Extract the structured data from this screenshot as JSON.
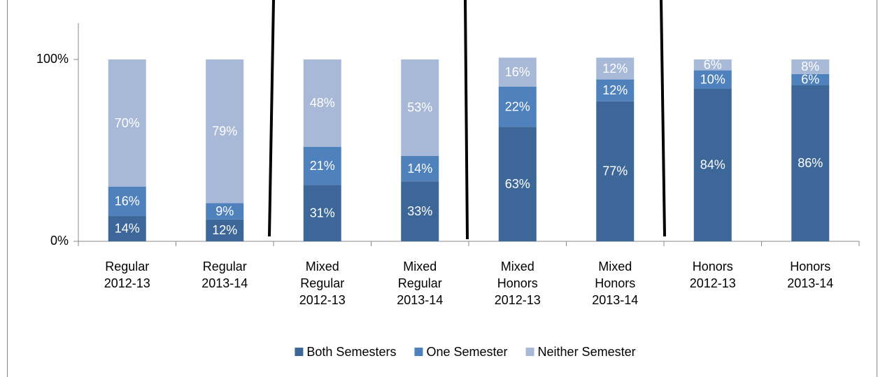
{
  "chart_data": {
    "type": "stacked-bar",
    "categories": [
      [
        "Regular",
        "2012-13"
      ],
      [
        "Regular",
        "2013-14"
      ],
      [
        "Mixed",
        "Regular",
        "2012-13"
      ],
      [
        "Mixed",
        "Regular",
        "2013-14"
      ],
      [
        "Mixed",
        "Honors",
        "2012-13"
      ],
      [
        "Mixed",
        "Honors",
        "2013-14"
      ],
      [
        "Honors",
        "2012-13"
      ],
      [
        "Honors",
        "2013-14"
      ]
    ],
    "series": [
      {
        "name": "Both Semesters",
        "color": "#3e6799",
        "values": [
          14,
          12,
          31,
          33,
          63,
          77,
          84,
          86
        ],
        "value_labels": [
          "14%",
          "12%",
          "31%",
          "33%",
          "63%",
          "77%",
          "84%",
          "86%"
        ]
      },
      {
        "name": "One Semester",
        "color": "#4f81bd",
        "values": [
          16,
          9,
          21,
          14,
          22,
          12,
          10,
          6
        ],
        "value_labels": [
          "16%",
          "9%",
          "21%",
          "14%",
          "22%",
          "12%",
          "10%",
          "6%"
        ]
      },
      {
        "name": "Neither Semester",
        "color": "#a7b9d7",
        "values": [
          70,
          79,
          48,
          53,
          16,
          12,
          6,
          8
        ],
        "value_labels": [
          "70%",
          "79%",
          "48%",
          "53%",
          "16%",
          "12%",
          "6%",
          "8%"
        ]
      }
    ],
    "ylim": [
      0,
      120
    ],
    "yticks": [
      {
        "value": 0,
        "label": "0%"
      },
      {
        "value": 100,
        "label": "100%"
      }
    ],
    "legend": "bottom"
  }
}
